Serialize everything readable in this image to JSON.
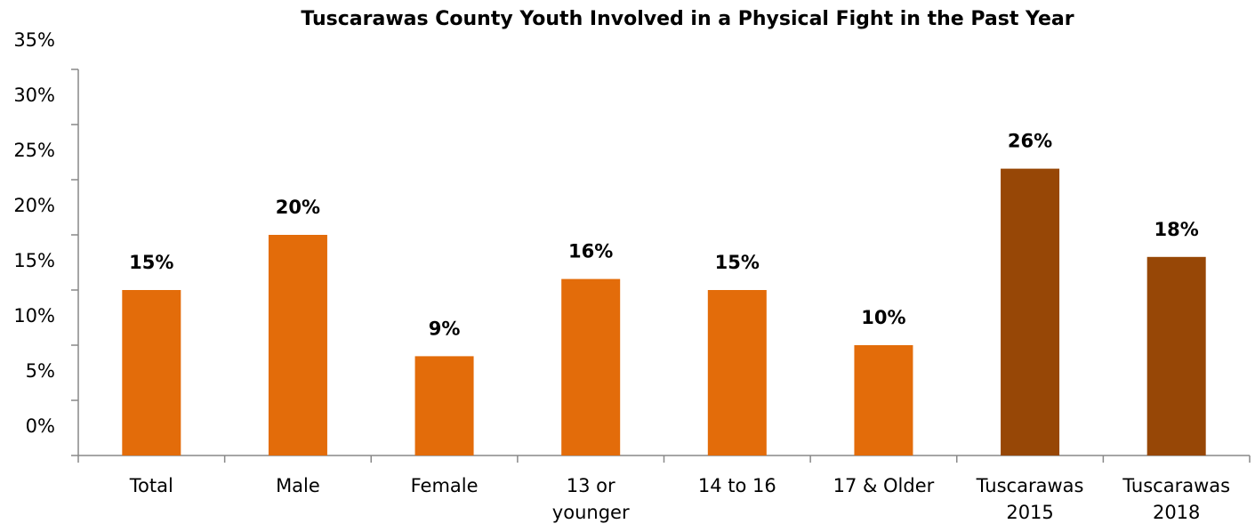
{
  "chart_data": {
    "type": "bar",
    "title": "Tuscarawas County Youth Involved in a Physical Fight in the Past Year",
    "categories": [
      "Total",
      "Male",
      "Female",
      "13 or\nyounger",
      "14 to 16",
      "17 & Older",
      "Tuscarawas\n2015",
      "Tuscarawas\n2018"
    ],
    "values": [
      15,
      20,
      9,
      16,
      15,
      10,
      26,
      18
    ],
    "value_labels": [
      "15%",
      "20%",
      "9%",
      "16%",
      "15%",
      "10%",
      "26%",
      "18%"
    ],
    "colors": [
      "#e36c0a",
      "#e36c0a",
      "#e36c0a",
      "#e36c0a",
      "#e36c0a",
      "#e36c0a",
      "#974706",
      "#974706"
    ],
    "ylim": [
      0,
      35
    ],
    "yticks": [
      {
        "value": 0,
        "label": "0%"
      },
      {
        "value": 5,
        "label": "5%"
      },
      {
        "value": 10,
        "label": "10%"
      },
      {
        "value": 15,
        "label": "15%"
      },
      {
        "value": 20,
        "label": "20%"
      },
      {
        "value": 25,
        "label": "25%"
      },
      {
        "value": 30,
        "label": "30%"
      },
      {
        "value": 35,
        "label": "35%"
      }
    ]
  }
}
